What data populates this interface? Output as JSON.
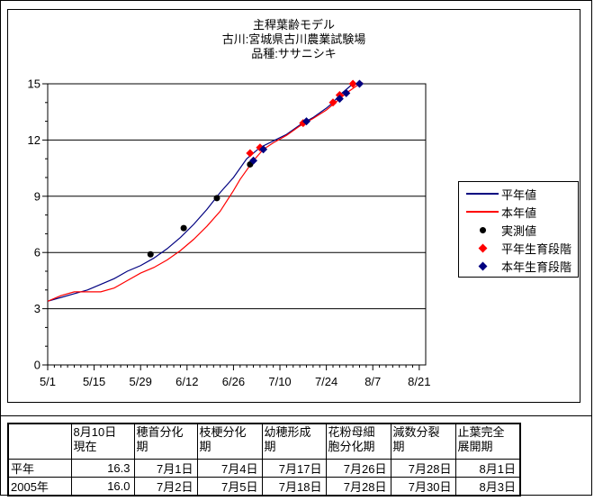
{
  "chart_data": {
    "type": "line",
    "title_lines": [
      "主稈葉齢モデル",
      "古川:宮城県古川農業試験場",
      "品種:ササニシキ"
    ],
    "x_axis": {
      "tick_labels": [
        "5/1",
        "5/15",
        "5/29",
        "6/12",
        "6/26",
        "7/10",
        "7/24",
        "8/7",
        "8/21"
      ],
      "major_interval_days": 14,
      "minor_interval_days": 2
    },
    "y_axis": {
      "tick_labels": [
        0,
        3,
        6,
        9,
        12,
        15
      ],
      "minor_interval": 1,
      "range": [
        0,
        15
      ]
    },
    "gridlines": "horizontal",
    "legend_position": "right",
    "series": [
      {
        "name": "平年値",
        "kind": "line",
        "color": "#000080",
        "points": [
          [
            "5/1",
            3.4
          ],
          [
            "5/5",
            3.6
          ],
          [
            "5/9",
            3.8
          ],
          [
            "5/13",
            4.0
          ],
          [
            "5/17",
            4.3
          ],
          [
            "5/21",
            4.6
          ],
          [
            "5/25",
            5.0
          ],
          [
            "5/29",
            5.3
          ],
          [
            "6/2",
            5.7
          ],
          [
            "6/6",
            6.2
          ],
          [
            "6/10",
            6.8
          ],
          [
            "6/14",
            7.5
          ],
          [
            "6/18",
            8.3
          ],
          [
            "6/22",
            9.2
          ],
          [
            "6/26",
            10.0
          ],
          [
            "6/30",
            11.0
          ],
          [
            "7/4",
            11.6
          ],
          [
            "7/8",
            11.95
          ],
          [
            "7/12",
            12.3
          ],
          [
            "7/16",
            12.8
          ],
          [
            "7/20",
            13.2
          ],
          [
            "7/24",
            13.7
          ],
          [
            "7/26",
            14.0
          ],
          [
            "7/28",
            14.4
          ],
          [
            "8/1",
            15.0
          ],
          [
            "8/4",
            15.05
          ]
        ]
      },
      {
        "name": "本年値",
        "kind": "line",
        "color": "#ff0000",
        "points": [
          [
            "5/1",
            3.4
          ],
          [
            "5/5",
            3.7
          ],
          [
            "5/9",
            3.9
          ],
          [
            "5/13",
            3.9
          ],
          [
            "5/17",
            3.9
          ],
          [
            "5/21",
            4.1
          ],
          [
            "5/25",
            4.5
          ],
          [
            "5/29",
            4.9
          ],
          [
            "6/2",
            5.2
          ],
          [
            "6/6",
            5.6
          ],
          [
            "6/10",
            6.1
          ],
          [
            "6/14",
            6.7
          ],
          [
            "6/18",
            7.4
          ],
          [
            "6/22",
            8.2
          ],
          [
            "6/26",
            9.3
          ],
          [
            "6/28",
            9.9
          ],
          [
            "6/30",
            10.4
          ],
          [
            "7/2",
            10.9
          ],
          [
            "7/5",
            11.5
          ],
          [
            "7/8",
            11.85
          ],
          [
            "7/12",
            12.25
          ],
          [
            "7/16",
            12.75
          ],
          [
            "7/20",
            13.15
          ],
          [
            "7/24",
            13.6
          ],
          [
            "7/28",
            14.2
          ],
          [
            "7/30",
            14.5
          ],
          [
            "8/3",
            15.0
          ],
          [
            "8/4",
            15.05
          ]
        ]
      },
      {
        "name": "実測値",
        "kind": "scatter",
        "marker": "circle",
        "color": "#000000",
        "points": [
          [
            "6/1",
            5.9
          ],
          [
            "6/11",
            7.3
          ],
          [
            "6/21",
            8.9
          ],
          [
            "7/1",
            10.7
          ]
        ]
      },
      {
        "name": "平年生育段階",
        "kind": "scatter",
        "marker": "diamond",
        "color": "#ff0000",
        "points": [
          [
            "7/1",
            11.3
          ],
          [
            "7/4",
            11.6
          ],
          [
            "7/17",
            12.9
          ],
          [
            "7/26",
            14.0
          ],
          [
            "7/28",
            14.4
          ],
          [
            "8/1",
            15.0
          ]
        ]
      },
      {
        "name": "本年生育段階",
        "kind": "scatter",
        "marker": "diamond",
        "color": "#000080",
        "points": [
          [
            "7/2",
            10.9
          ],
          [
            "7/5",
            11.5
          ],
          [
            "7/18",
            13.0
          ],
          [
            "7/28",
            14.2
          ],
          [
            "7/30",
            14.5
          ],
          [
            "8/3",
            15.0
          ]
        ]
      }
    ]
  },
  "table": {
    "headers": [
      [
        ""
      ],
      [
        "8月10日",
        "現在"
      ],
      [
        "穂首分化",
        "期"
      ],
      [
        "枝梗分化",
        "期"
      ],
      [
        "幼穂形成",
        "期"
      ],
      [
        "花粉母細",
        "胞分化期"
      ],
      [
        "減数分裂",
        "期"
      ],
      [
        "止葉完全",
        "展開期"
      ]
    ],
    "rows": [
      {
        "label": "平年",
        "values": [
          "16.3",
          "7月1日",
          "7月4日",
          "7月17日",
          "7月26日",
          "7月28日",
          "8月1日"
        ]
      },
      {
        "label": "2005年",
        "values": [
          "16.0",
          "7月2日",
          "7月5日",
          "7月18日",
          "7月28日",
          "7月30日",
          "8月3日"
        ]
      }
    ]
  },
  "colors": {
    "normal_line": "#000080",
    "current_line": "#ff0000",
    "observed_point": "#000000",
    "normal_stage_marker": "#ff0000",
    "current_stage_marker": "#000080",
    "frame": "#000000",
    "background": "#ffffff"
  }
}
